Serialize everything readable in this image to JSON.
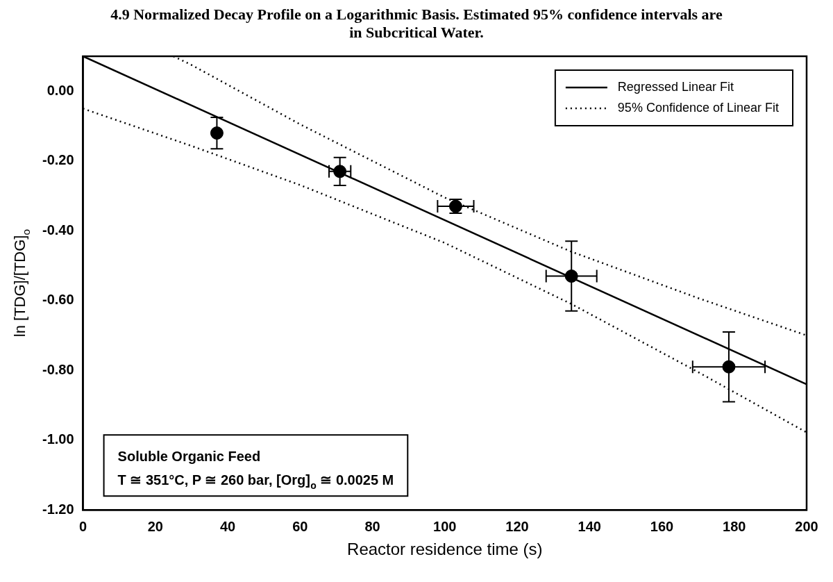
{
  "chart_data": {
    "type": "scatter",
    "title": "4.9 Normalized Decay Profile on a Logarithmic Basis. Estimated 95% confidence intervals are",
    "subtitle": "in Subcritical Water.",
    "xlabel": "Reactor residence time (s)",
    "ylabel": "ln [TDG]/[TDG]$_{o}$",
    "xlim": [
      0,
      200
    ],
    "xticks": [
      0,
      20,
      40,
      60,
      80,
      100,
      120,
      140,
      160,
      180,
      200
    ],
    "ylim": [
      -1.2,
      0.1
    ],
    "yticks": [
      {
        "value": -1.2,
        "label": "-1.20"
      },
      {
        "value": -1,
        "label": "-1.00"
      },
      {
        "value": -0.8,
        "label": "-0.80"
      },
      {
        "value": -0.6,
        "label": "-0.60"
      },
      {
        "value": -0.4,
        "label": "-0.40"
      },
      {
        "value": -0.2,
        "label": "-0.20"
      },
      {
        "value": 0,
        "label": "0.00"
      }
    ],
    "grid": false,
    "legend": "top right",
    "annotations": [
      "Soluble Organic Feed",
      "T ≅ 351°C, P ≅ 260 bar, [Org]$_{o}$ ≅ 0.0025 M"
    ],
    "series": [
      {
        "marker": "circle",
        "color": "#000000",
        "x": [
          37,
          71,
          103,
          135,
          178.5
        ],
        "values": [
          -0.12,
          -0.23,
          -0.33,
          -0.53,
          -0.79
        ],
        "errors": [
          0.045,
          0.04,
          0.02,
          0.1,
          0.1
        ],
        "xerrors": [
          null,
          3,
          5,
          7,
          10
        ]
      },
      {
        "type": "line",
        "marker": "none",
        "name": "Regressed Linear Fit",
        "color": "#000000",
        "line_style": "solid",
        "x": [
          0,
          200
        ],
        "values": [
          0.1,
          -0.84
        ]
      },
      {
        "type": "line",
        "marker": "none",
        "name": "95% Confidence of Linear Fit",
        "color": "#000000",
        "line_style": "dotted",
        "x": [
          25,
          30,
          60,
          100,
          135,
          170,
          200
        ],
        "values": [
          0.1,
          0.075,
          -0.095,
          -0.305,
          -0.46,
          -0.593,
          -0.7
        ]
      },
      {
        "type": "line",
        "marker": "none",
        "color": "#000000",
        "line_style": "dotted",
        "x": [
          0,
          30,
          60,
          100,
          135,
          170,
          200
        ],
        "values": [
          -0.05,
          -0.157,
          -0.269,
          -0.435,
          -0.61,
          -0.805,
          -0.978
        ]
      }
    ]
  }
}
